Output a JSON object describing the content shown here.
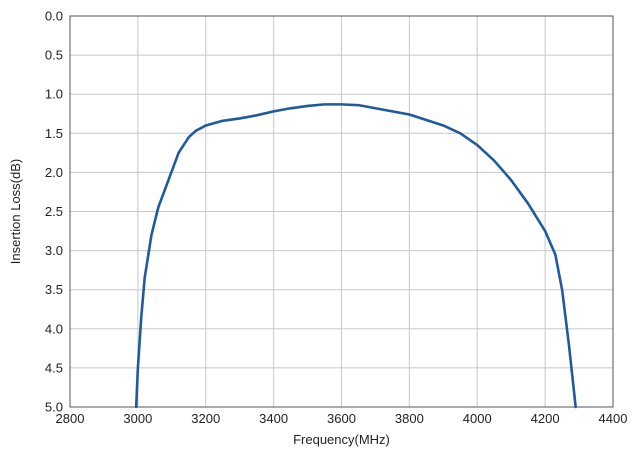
{
  "chart_data": {
    "type": "line",
    "title": "",
    "xlabel": "Frequency(MHz)",
    "ylabel": "Insertion Loss(dB)",
    "xlim": [
      2800,
      4400
    ],
    "ylim": [
      0.0,
      5.0
    ],
    "y_inverted": true,
    "grid": true,
    "x_ticks": [
      "2800",
      "3000",
      "3200",
      "3400",
      "3600",
      "3800",
      "4000",
      "4200",
      "4400"
    ],
    "y_ticks": [
      "0.0",
      "0.5",
      "1.0",
      "1.5",
      "2.0",
      "2.5",
      "3.0",
      "3.5",
      "4.0",
      "4.5",
      "5.0"
    ],
    "colors": {
      "line": "#1f5a9e",
      "grid": "#c8c8c8",
      "frame": "#555555"
    },
    "series": [
      {
        "x": [
          2995,
          3000,
          3010,
          3020,
          3040,
          3060,
          3090,
          3120,
          3150,
          3170,
          3200,
          3250,
          3300,
          3350,
          3400,
          3450,
          3500,
          3550,
          3600,
          3650,
          3700,
          3750,
          3800,
          3850,
          3900,
          3950,
          4000,
          4050,
          4100,
          4150,
          4200,
          4230,
          4250,
          4270,
          4290
        ],
        "y": [
          5.0,
          4.5,
          3.85,
          3.35,
          2.8,
          2.45,
          2.1,
          1.75,
          1.55,
          1.47,
          1.4,
          1.34,
          1.31,
          1.27,
          1.22,
          1.18,
          1.15,
          1.13,
          1.13,
          1.14,
          1.18,
          1.22,
          1.26,
          1.33,
          1.4,
          1.5,
          1.65,
          1.85,
          2.1,
          2.4,
          2.75,
          3.05,
          3.5,
          4.2,
          5.0
        ]
      }
    ]
  }
}
